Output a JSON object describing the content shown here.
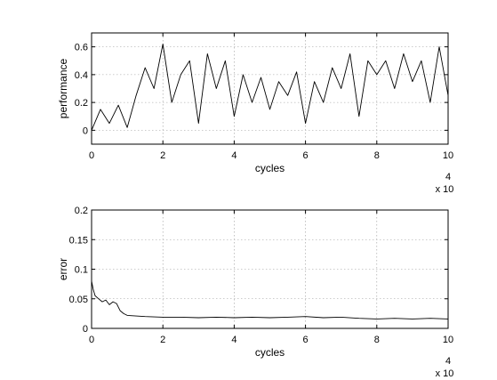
{
  "chart_data": [
    {
      "type": "line",
      "xlabel": "cycles",
      "ylabel": "performance",
      "x_multiplier_label": "x 10",
      "x_multiplier_exponent": "4",
      "xlim": [
        0,
        10
      ],
      "ylim": [
        -0.1,
        0.7
      ],
      "xticks": [
        0,
        2,
        4,
        6,
        8,
        10
      ],
      "yticks": [
        0,
        0.2,
        0.4,
        0.6
      ],
      "grid": true,
      "series": [
        {
          "x": [
            0,
            0.25,
            0.5,
            0.75,
            1.0,
            1.25,
            1.5,
            1.75,
            2.0,
            2.25,
            2.5,
            2.75,
            3.0,
            3.25,
            3.5,
            3.75,
            4.0,
            4.25,
            4.5,
            4.75,
            5.0,
            5.25,
            5.5,
            5.75,
            6.0,
            6.25,
            6.5,
            6.75,
            7.0,
            7.25,
            7.5,
            7.75,
            8.0,
            8.25,
            8.5,
            8.75,
            9.0,
            9.25,
            9.5,
            9.75,
            10.0
          ],
          "y": [
            0.0,
            0.15,
            0.05,
            0.18,
            0.02,
            0.25,
            0.45,
            0.3,
            0.62,
            0.2,
            0.4,
            0.5,
            0.05,
            0.55,
            0.3,
            0.5,
            0.1,
            0.4,
            0.2,
            0.38,
            0.15,
            0.35,
            0.25,
            0.42,
            0.05,
            0.35,
            0.2,
            0.45,
            0.3,
            0.55,
            0.1,
            0.5,
            0.4,
            0.5,
            0.3,
            0.55,
            0.35,
            0.5,
            0.2,
            0.6,
            0.25
          ]
        }
      ]
    },
    {
      "type": "line",
      "xlabel": "cycles",
      "ylabel": "error",
      "x_multiplier_label": "x 10",
      "x_multiplier_exponent": "4",
      "xlim": [
        0,
        10
      ],
      "ylim": [
        0,
        0.2
      ],
      "xticks": [
        0,
        2,
        4,
        6,
        8,
        10
      ],
      "yticks": [
        0,
        0.05,
        0.1,
        0.15,
        0.2
      ],
      "grid": true,
      "series": [
        {
          "x": [
            0,
            0.05,
            0.1,
            0.2,
            0.3,
            0.4,
            0.5,
            0.6,
            0.7,
            0.8,
            0.9,
            1.0,
            1.5,
            2.0,
            2.5,
            3.0,
            3.5,
            4.0,
            4.5,
            5.0,
            5.5,
            6.0,
            6.5,
            7.0,
            7.5,
            8.0,
            8.5,
            9.0,
            9.5,
            10.0
          ],
          "y": [
            0.08,
            0.065,
            0.055,
            0.05,
            0.045,
            0.048,
            0.04,
            0.045,
            0.042,
            0.03,
            0.025,
            0.022,
            0.02,
            0.019,
            0.019,
            0.018,
            0.019,
            0.018,
            0.019,
            0.018,
            0.019,
            0.02,
            0.018,
            0.019,
            0.017,
            0.016,
            0.017,
            0.016,
            0.017,
            0.016
          ]
        }
      ]
    }
  ]
}
